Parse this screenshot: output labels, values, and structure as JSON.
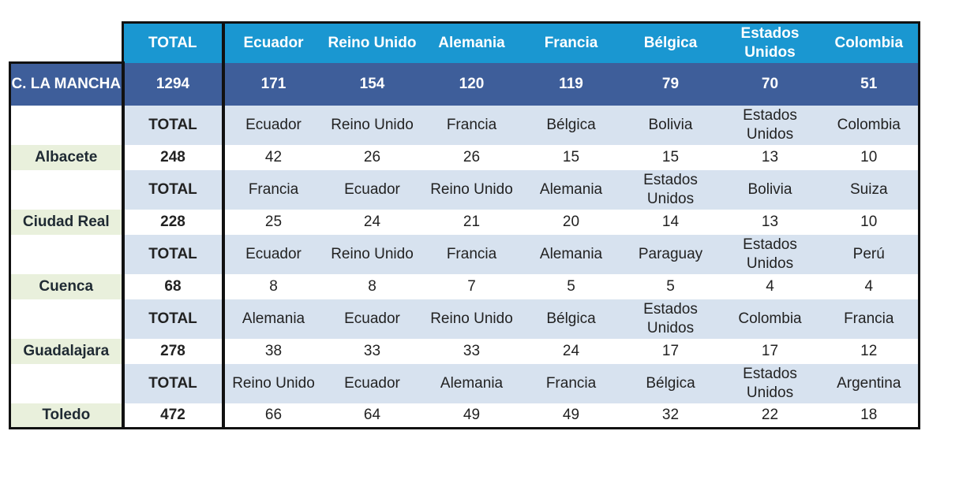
{
  "header": {
    "total": "TOTAL",
    "countries": [
      "Ecuador",
      "Reino Unido",
      "Alemania",
      "Francia",
      "Bélgica",
      "Estados Unidos",
      "Colombia"
    ]
  },
  "region_total": {
    "label": "C. LA MANCHA",
    "total": "1294",
    "values": [
      "171",
      "154",
      "120",
      "119",
      "79",
      "70",
      "51"
    ]
  },
  "provinces": [
    {
      "name": "Albacete",
      "total_label": "TOTAL",
      "countries": [
        "Ecuador",
        "Reino Unido",
        "Francia",
        "Bélgica",
        "Bolivia",
        "Estados Unidos",
        "Colombia"
      ],
      "total": "248",
      "values": [
        "42",
        "26",
        "26",
        "15",
        "15",
        "13",
        "10"
      ]
    },
    {
      "name": "Ciudad Real",
      "total_label": "TOTAL",
      "countries": [
        "Francia",
        "Ecuador",
        "Reino Unido",
        "Alemania",
        "Estados Unidos",
        "Bolivia",
        "Suiza"
      ],
      "total": "228",
      "values": [
        "25",
        "24",
        "21",
        "20",
        "14",
        "13",
        "10"
      ]
    },
    {
      "name": "Cuenca",
      "total_label": "TOTAL",
      "countries": [
        "Ecuador",
        "Reino Unido",
        "Francia",
        "Alemania",
        "Paraguay",
        "Estados Unidos",
        "Perú"
      ],
      "total": "68",
      "values": [
        "8",
        "8",
        "7",
        "5",
        "5",
        "4",
        "4"
      ]
    },
    {
      "name": "Guadalajara",
      "total_label": "TOTAL",
      "countries": [
        "Alemania",
        "Ecuador",
        "Reino Unido",
        "Bélgica",
        "Estados Unidos",
        "Colombia",
        "Francia"
      ],
      "total": "278",
      "values": [
        "38",
        "33",
        "33",
        "24",
        "17",
        "17",
        "12"
      ]
    },
    {
      "name": "Toledo",
      "total_label": "TOTAL",
      "countries": [
        "Reino Unido",
        "Ecuador",
        "Alemania",
        "Francia",
        "Bélgica",
        "Estados Unidos",
        "Argentina"
      ],
      "total": "472",
      "values": [
        "66",
        "64",
        "49",
        "49",
        "32",
        "22",
        "18"
      ]
    }
  ],
  "colors": {
    "header_bg": "#1a97d1",
    "region_bg": "#3e5e9a",
    "names_bg": "#d7e2ef",
    "province_label_bg": "#e9f0dc",
    "border": "#111111"
  }
}
